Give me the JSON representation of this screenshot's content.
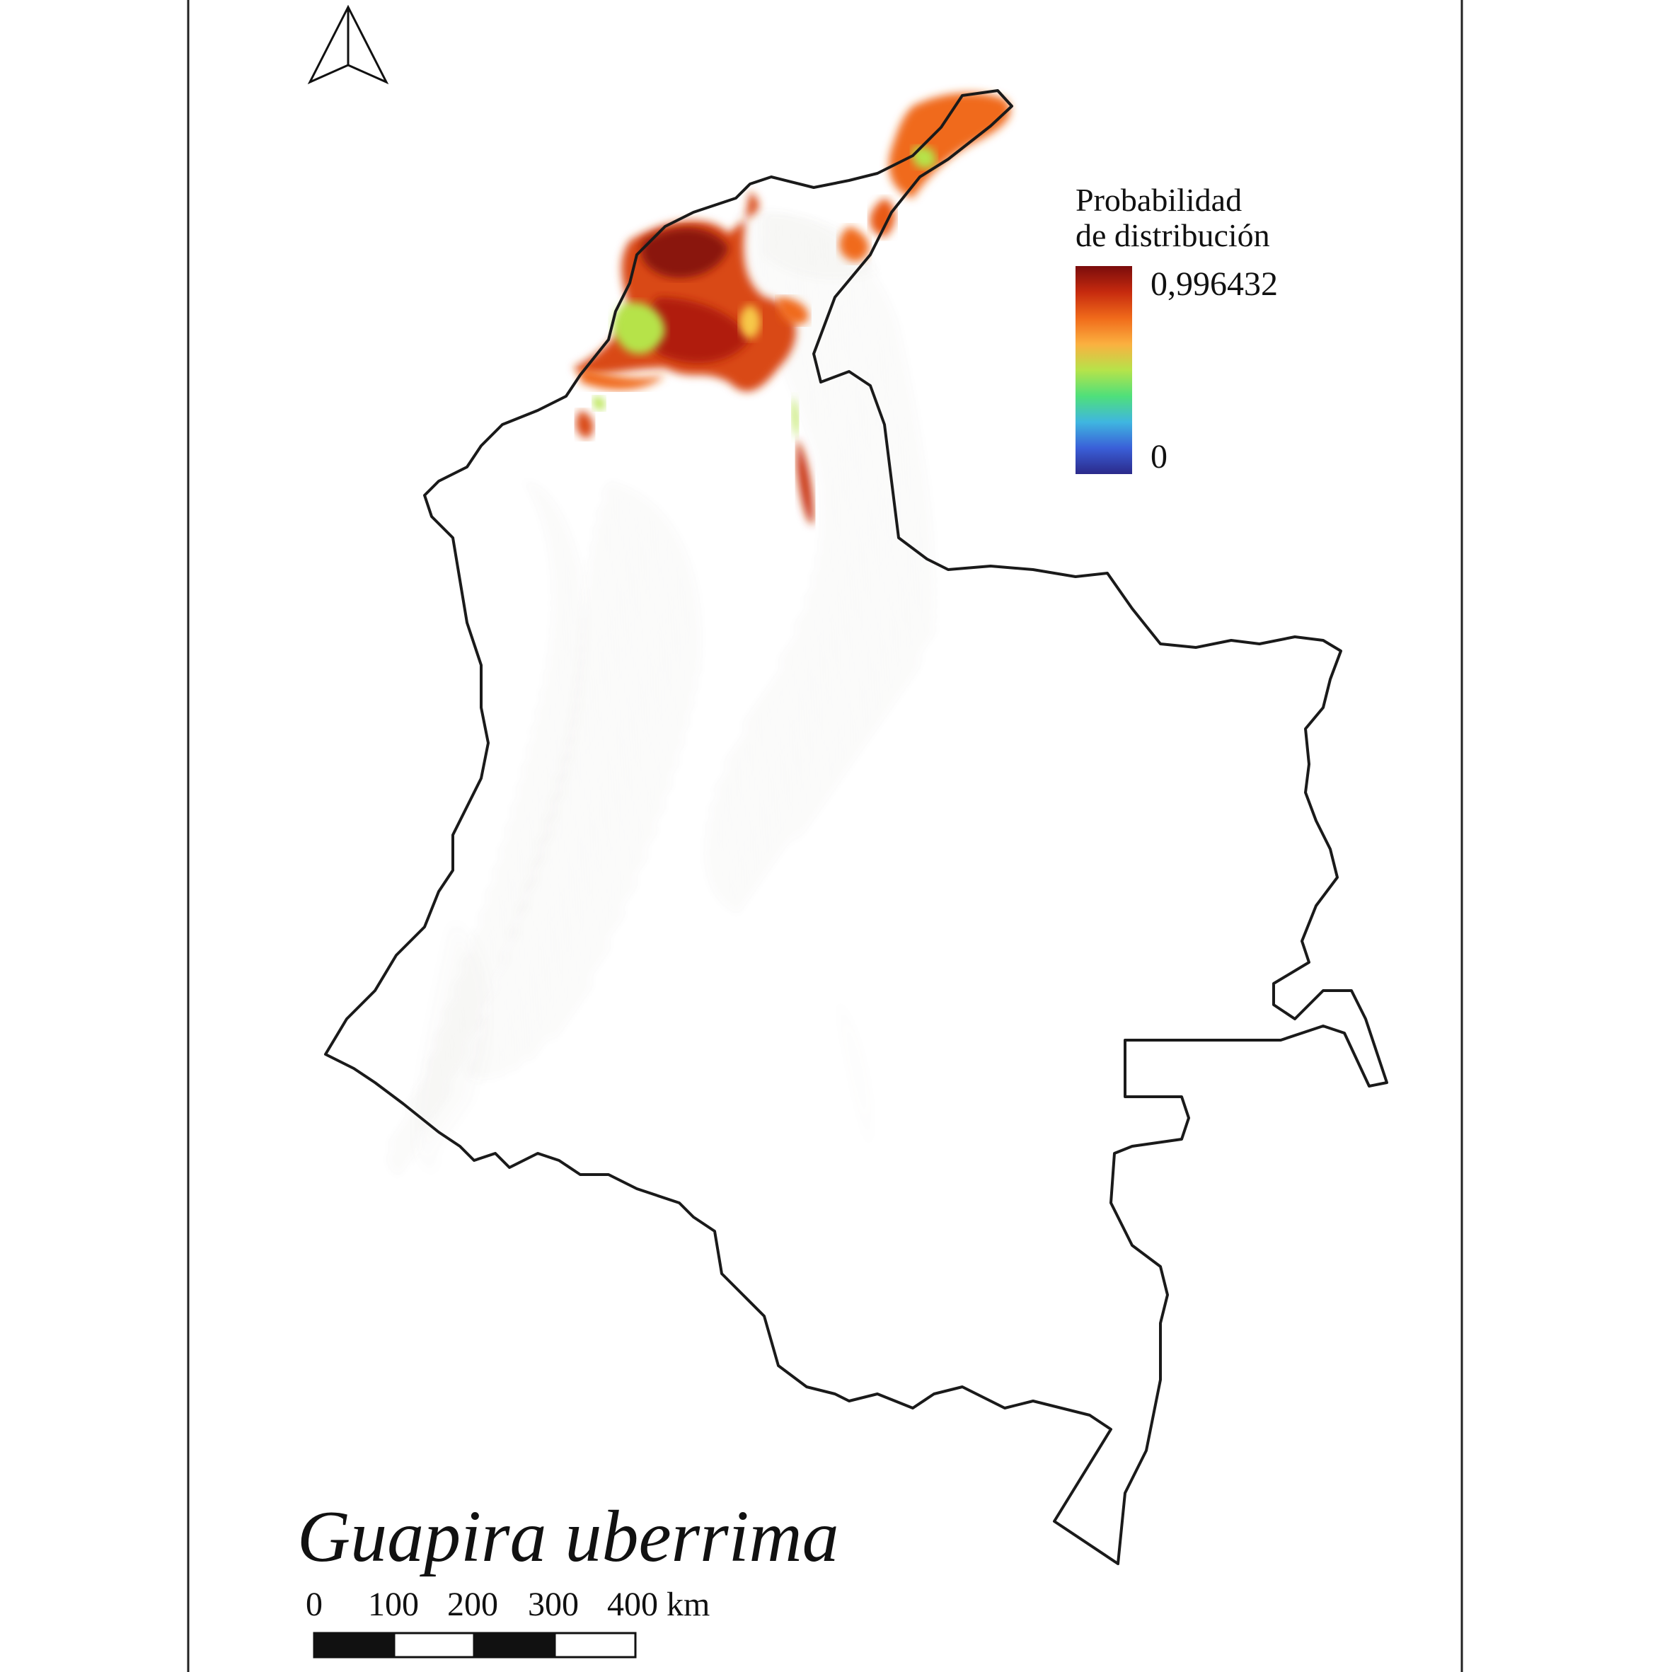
{
  "legend": {
    "title_line1": "Probabilidad",
    "title_line2": "de distribución",
    "max_label": "0,996432",
    "min_label": "0",
    "max_value": 0.996432,
    "min_value": 0,
    "gradient_colors": [
      "#7a0c0c",
      "#c62a0e",
      "#f06a1a",
      "#fbb040",
      "#b6e34a",
      "#4fe07a",
      "#3fb6e0",
      "#3a5fd8",
      "#2b2a8a"
    ]
  },
  "map": {
    "species": "Guapira uberrima",
    "north_arrow_icon": "north-arrow-icon",
    "outline_color": "#1a1a1a",
    "relief_color": "#b8b2aa"
  },
  "scale_bar": {
    "labels": [
      "0",
      "100",
      "200",
      "300",
      "400 km"
    ],
    "unit": "km"
  }
}
